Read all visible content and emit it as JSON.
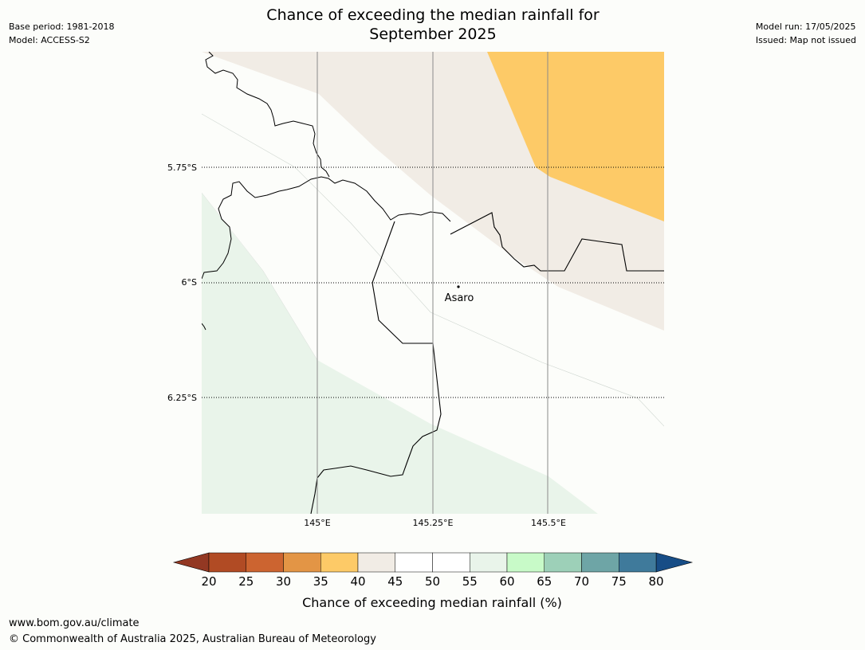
{
  "header": {
    "title_line1": "Chance of exceeding the median rainfall for",
    "title_line2": "September 2025",
    "base_period": "Base period: 1981-2018",
    "model": "Model: ACCESS-S2",
    "model_run": "Model run: 17/05/2025",
    "issued": "Issued: Map not issued"
  },
  "map": {
    "lat_labels": [
      "5.75°S",
      "6°S",
      "6.25°S"
    ],
    "lon_labels": [
      "145°E",
      "145.25°E",
      "145.5°E"
    ],
    "place": {
      "name": "Asaro"
    },
    "fill_colors": {
      "background": "#fcfdfa",
      "band_35_40": "#fdca67",
      "band_40_45": "#f1ece5",
      "band_55_60": "#e9f4ea"
    }
  },
  "colorbar": {
    "title": "Chance of exceeding median rainfall (%)",
    "ticks": [
      "20",
      "25",
      "30",
      "35",
      "40",
      "45",
      "50",
      "55",
      "60",
      "65",
      "70",
      "75",
      "80"
    ],
    "under_color": "#933823",
    "over_color": "#174d86",
    "colors": [
      "#b14b24",
      "#cc6430",
      "#e39545",
      "#fdca67",
      "#f1ece5",
      "#ffffff",
      "#ffffff",
      "#e9f4ea",
      "#c8fac8",
      "#9dd0b8",
      "#6ea5a6",
      "#3f7a9b"
    ]
  },
  "footer": {
    "url": "www.bom.gov.au/climate",
    "copyright": "© Commonwealth of Australia 2025, Australian Bureau of Meteorology"
  }
}
